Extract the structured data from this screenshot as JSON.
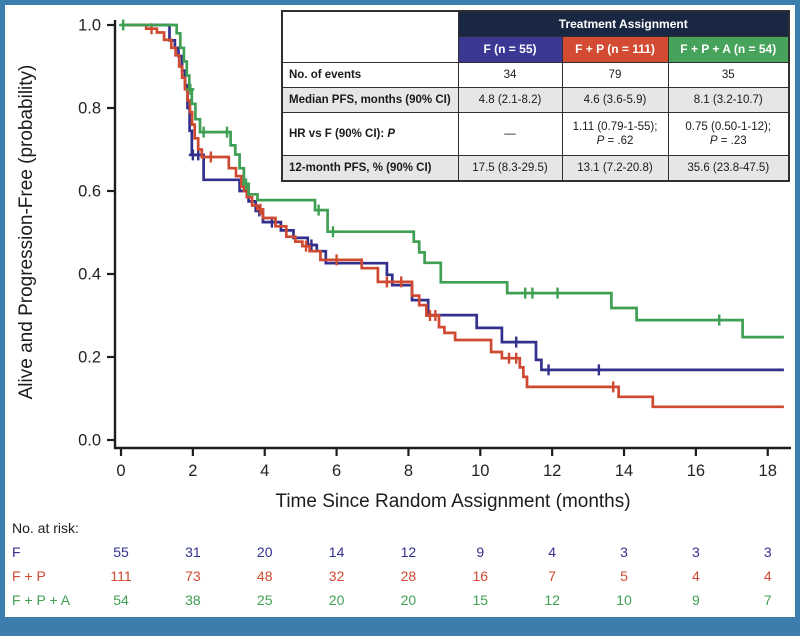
{
  "frame": {
    "border_color": "#3c7dad",
    "background": "#ffffff"
  },
  "stats_table": {
    "header": "Treatment Assignment",
    "header_bg": "#1a2742",
    "columns": [
      {
        "label": "F (n = 55)",
        "bg": "#3b3893"
      },
      {
        "label": "F + P (n = 111)",
        "bg": "#d24b32"
      },
      {
        "label": "F + P + A (n = 54)",
        "bg": "#47a35c"
      }
    ],
    "rows": [
      {
        "label": "No. of events",
        "values": [
          "34",
          "79",
          "35"
        ]
      },
      {
        "label": "Median PFS, months (90% CI)",
        "values": [
          "4.8 (2.1-8.2)",
          "4.6 (3.6-5.9)",
          "8.1 (3.2-10.7)"
        ]
      },
      {
        "label": "HR vs F (90% CI): ",
        "label_italic": "P",
        "values": [
          "—",
          "1.11 (0.79-1-55);",
          "0.75 (0.50-1-12);"
        ],
        "p_lines": [
          "",
          "P = .62",
          "P = .23"
        ]
      },
      {
        "label": "12-month PFS, % (90% CI)",
        "values": [
          "17.5 (8.3-29.5)",
          "13.1 (7.2-20.8)",
          "35.6 (23.8-47.5)"
        ]
      }
    ]
  },
  "chart_data": {
    "type": "line",
    "subtype": "kaplan-meier-step",
    "title": "",
    "xlabel": "Time Since Random Assignment (months)",
    "ylabel": "Alive and Progression-Free (probability)",
    "xlim": [
      0,
      18.6
    ],
    "ylim": [
      0,
      1.0
    ],
    "x_ticks": [
      0,
      2,
      4,
      6,
      8,
      10,
      12,
      14,
      16,
      18
    ],
    "y_ticks": [
      0,
      0.2,
      0.4,
      0.6,
      0.8,
      1
    ],
    "grid": false,
    "axis_color": "#1d1d1d",
    "series": [
      {
        "name": "F",
        "color": "#32308c",
        "steps": [
          [
            0,
            1.0
          ],
          [
            1.35,
            0.963
          ],
          [
            1.5,
            0.945
          ],
          [
            1.6,
            0.925
          ],
          [
            1.7,
            0.89
          ],
          [
            1.78,
            0.855
          ],
          [
            1.85,
            0.8
          ],
          [
            1.91,
            0.745
          ],
          [
            1.97,
            0.687
          ],
          [
            2.3,
            0.627
          ],
          [
            3.3,
            0.6
          ],
          [
            3.55,
            0.575
          ],
          [
            3.75,
            0.552
          ],
          [
            3.95,
            0.525
          ],
          [
            4.45,
            0.505
          ],
          [
            4.8,
            0.487
          ],
          [
            5.2,
            0.47
          ],
          [
            5.45,
            0.455
          ],
          [
            5.7,
            0.426
          ],
          [
            7.4,
            0.398
          ],
          [
            7.55,
            0.373
          ],
          [
            8.1,
            0.337
          ],
          [
            8.55,
            0.301
          ],
          [
            9.9,
            0.27
          ],
          [
            10.6,
            0.236
          ],
          [
            11.55,
            0.193
          ],
          [
            11.7,
            0.169
          ],
          [
            18.45,
            0.169
          ]
        ],
        "censors": [
          [
            2.0,
            0.687
          ],
          [
            2.15,
            0.687
          ],
          [
            3.85,
            0.552
          ],
          [
            4.2,
            0.525
          ],
          [
            5.3,
            0.47
          ],
          [
            11.0,
            0.236
          ],
          [
            11.9,
            0.169
          ],
          [
            13.3,
            0.169
          ]
        ]
      },
      {
        "name": "F + P",
        "color": "#cf4a31",
        "steps": [
          [
            0,
            1.0
          ],
          [
            0.7,
            0.991
          ],
          [
            1.0,
            0.982
          ],
          [
            1.2,
            0.964
          ],
          [
            1.4,
            0.945
          ],
          [
            1.52,
            0.927
          ],
          [
            1.62,
            0.9
          ],
          [
            1.7,
            0.873
          ],
          [
            1.78,
            0.845
          ],
          [
            1.85,
            0.818
          ],
          [
            1.92,
            0.79
          ],
          [
            1.98,
            0.76
          ],
          [
            2.05,
            0.727
          ],
          [
            2.15,
            0.7
          ],
          [
            2.25,
            0.682
          ],
          [
            3.0,
            0.655
          ],
          [
            3.2,
            0.636
          ],
          [
            3.35,
            0.61
          ],
          [
            3.5,
            0.585
          ],
          [
            3.65,
            0.565
          ],
          [
            3.8,
            0.556
          ],
          [
            3.95,
            0.535
          ],
          [
            4.3,
            0.515
          ],
          [
            4.6,
            0.49
          ],
          [
            4.85,
            0.478
          ],
          [
            5.05,
            0.467
          ],
          [
            5.25,
            0.455
          ],
          [
            5.55,
            0.434
          ],
          [
            6.7,
            0.414
          ],
          [
            7.15,
            0.381
          ],
          [
            8.1,
            0.348
          ],
          [
            8.3,
            0.325
          ],
          [
            8.5,
            0.3
          ],
          [
            8.85,
            0.272
          ],
          [
            9.0,
            0.258
          ],
          [
            9.3,
            0.241
          ],
          [
            10.3,
            0.212
          ],
          [
            10.6,
            0.197
          ],
          [
            11.1,
            0.175
          ],
          [
            11.2,
            0.152
          ],
          [
            11.3,
            0.128
          ],
          [
            13.85,
            0.104
          ],
          [
            14.8,
            0.08
          ],
          [
            18.45,
            0.08
          ]
        ],
        "censors": [
          [
            0.85,
            0.991
          ],
          [
            2.5,
            0.682
          ],
          [
            3.42,
            0.61
          ],
          [
            3.88,
            0.556
          ],
          [
            5.15,
            0.467
          ],
          [
            6.0,
            0.434
          ],
          [
            7.4,
            0.381
          ],
          [
            7.8,
            0.381
          ],
          [
            8.6,
            0.3
          ],
          [
            8.75,
            0.3
          ],
          [
            10.8,
            0.197
          ],
          [
            11.0,
            0.197
          ],
          [
            13.7,
            0.128
          ]
        ]
      },
      {
        "name": "F + P + A",
        "color": "#3fa054",
        "steps": [
          [
            0,
            1.0
          ],
          [
            1.55,
            0.98
          ],
          [
            1.65,
            0.945
          ],
          [
            1.75,
            0.912
          ],
          [
            1.83,
            0.878
          ],
          [
            1.9,
            0.845
          ],
          [
            1.97,
            0.81
          ],
          [
            2.07,
            0.773
          ],
          [
            2.2,
            0.742
          ],
          [
            3.05,
            0.71
          ],
          [
            3.18,
            0.688
          ],
          [
            3.3,
            0.655
          ],
          [
            3.42,
            0.617
          ],
          [
            3.55,
            0.592
          ],
          [
            3.8,
            0.578
          ],
          [
            5.4,
            0.554
          ],
          [
            5.75,
            0.502
          ],
          [
            8.15,
            0.478
          ],
          [
            8.3,
            0.452
          ],
          [
            8.45,
            0.427
          ],
          [
            8.9,
            0.38
          ],
          [
            10.75,
            0.354
          ],
          [
            13.65,
            0.318
          ],
          [
            14.35,
            0.289
          ],
          [
            17.3,
            0.248
          ],
          [
            18.45,
            0.248
          ]
        ],
        "censors": [
          [
            0.06,
            1.0
          ],
          [
            1.93,
            0.845
          ],
          [
            2.3,
            0.742
          ],
          [
            2.95,
            0.742
          ],
          [
            3.48,
            0.617
          ],
          [
            5.5,
            0.554
          ],
          [
            5.9,
            0.502
          ],
          [
            11.25,
            0.354
          ],
          [
            11.45,
            0.354
          ],
          [
            12.15,
            0.354
          ],
          [
            16.65,
            0.289
          ]
        ]
      }
    ],
    "risk_table": {
      "label": "No. at risk:",
      "label_color": "#1a1a1a",
      "times": [
        0,
        2,
        4,
        6,
        8,
        10,
        12,
        14,
        16,
        18
      ],
      "rows": [
        {
          "name": "F",
          "color": "#32308c",
          "counts": [
            55,
            31,
            20,
            14,
            12,
            9,
            4,
            3,
            3,
            3
          ]
        },
        {
          "name": "F + P",
          "color": "#cf4a31",
          "counts": [
            111,
            73,
            48,
            32,
            28,
            16,
            7,
            5,
            4,
            4
          ]
        },
        {
          "name": "F + P + A",
          "color": "#3fa054",
          "counts": [
            54,
            38,
            25,
            20,
            20,
            15,
            12,
            10,
            9,
            7
          ]
        }
      ]
    }
  }
}
